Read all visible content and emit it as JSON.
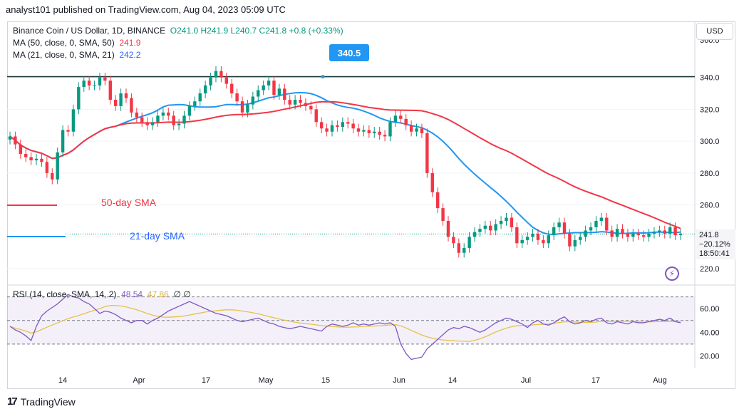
{
  "caption": "analyst101 published on TradingView.com, Aug 04, 2023 05:09 UTC",
  "legend": {
    "symbol": "Binance Coin / US Dollar, 1D, BINANCE",
    "ohlc": "O241.0 H241.9 L240.7 C241.8 +0.8 (+0.33%)",
    "ma50_label": "MA (50, close, 0, SMA, 50)",
    "ma50_value": "241.9",
    "ma21_label": "MA (21, close, 0, SMA, 21)",
    "ma21_value": "242.2",
    "rsi_label": "RSI (14, close, SMA, 14, 2)",
    "rsi_value": "48.54",
    "rsi_ma_value": "47.86",
    "rsi_extra": "∅ ∅"
  },
  "currency": "USD",
  "annotations": {
    "level_badge": "340.5",
    "sma50_text": "50-day SMA",
    "sma21_text": "21-day SMA"
  },
  "last_price": {
    "price": "241.8",
    "change": "−20.12%",
    "timer": "18:50:41"
  },
  "footer": {
    "logo_text": "TradingView",
    "logo_mark": "17"
  },
  "colors": {
    "up": "#089981",
    "down": "#f23645",
    "ma21": "#2196f3",
    "ma50": "#f23645",
    "rsi": "#7e57c2",
    "rsi_ma": "#e6c24a",
    "level": "#1f3b3b"
  },
  "chart_data": {
    "type": "candlestick",
    "price_ticks": [
      220,
      240,
      260,
      280,
      300,
      320,
      340
    ],
    "price_top_tick_partial": "360.0",
    "rsi_ticks": [
      20,
      40,
      60
    ],
    "x_labels": [
      "14",
      "Apr",
      "17",
      "May",
      "15",
      "Jun",
      "14",
      "Jul",
      "17",
      "Aug"
    ],
    "horizontal_level": 340.5,
    "price": [
      303,
      298,
      292,
      290,
      288,
      289,
      287,
      280,
      276,
      293,
      307,
      306,
      320,
      334,
      338,
      335,
      335,
      340,
      338,
      326,
      322,
      330,
      327,
      318,
      315,
      312,
      310,
      312,
      316,
      318,
      316,
      310,
      311,
      316,
      322,
      325,
      330,
      335,
      340,
      344,
      340,
      336,
      330,
      325,
      318,
      323,
      328,
      332,
      335,
      338,
      329,
      333,
      326,
      323,
      326,
      324,
      322,
      320,
      312,
      308,
      306,
      310,
      309,
      312,
      311,
      308,
      306,
      307,
      305,
      306,
      304,
      303,
      312,
      316,
      314,
      310,
      306,
      308,
      305,
      280,
      268,
      258,
      250,
      240,
      236,
      230,
      233,
      240,
      243,
      245,
      247,
      244,
      248,
      250,
      252,
      246,
      236,
      238,
      240,
      242,
      238,
      236,
      241,
      246,
      249,
      242,
      234,
      238,
      240,
      244,
      246,
      250,
      252,
      244,
      240,
      245,
      242,
      240,
      242,
      241,
      240,
      242,
      243,
      244,
      242,
      246,
      241,
      242
    ],
    "rsi": [
      45,
      42,
      40,
      37,
      33,
      45,
      54,
      58,
      61,
      64,
      68,
      72,
      70,
      69,
      66,
      64,
      60,
      56,
      58,
      57,
      55,
      52,
      50,
      48,
      50,
      50,
      47,
      50,
      52,
      55,
      58,
      60,
      62,
      64,
      66,
      64,
      62,
      60,
      58,
      56,
      55,
      54,
      52,
      50,
      49,
      50,
      51,
      52,
      50,
      48,
      47,
      45,
      44,
      43,
      44,
      45,
      44,
      43,
      42,
      41,
      45,
      47,
      46,
      45,
      46,
      48,
      46,
      47,
      46,
      47,
      48,
      47,
      48,
      45,
      30,
      22,
      17,
      18,
      19,
      26,
      30,
      34,
      38,
      42,
      44,
      43,
      45,
      44,
      42,
      40,
      42,
      45,
      48,
      50,
      52,
      51,
      49,
      47,
      44,
      48,
      50,
      47,
      46,
      48,
      51,
      53,
      49,
      47,
      48,
      50,
      49,
      51,
      52,
      48,
      47,
      49,
      48,
      47,
      49,
      48,
      48,
      49,
      50,
      51,
      50,
      52,
      49,
      48
    ]
  }
}
